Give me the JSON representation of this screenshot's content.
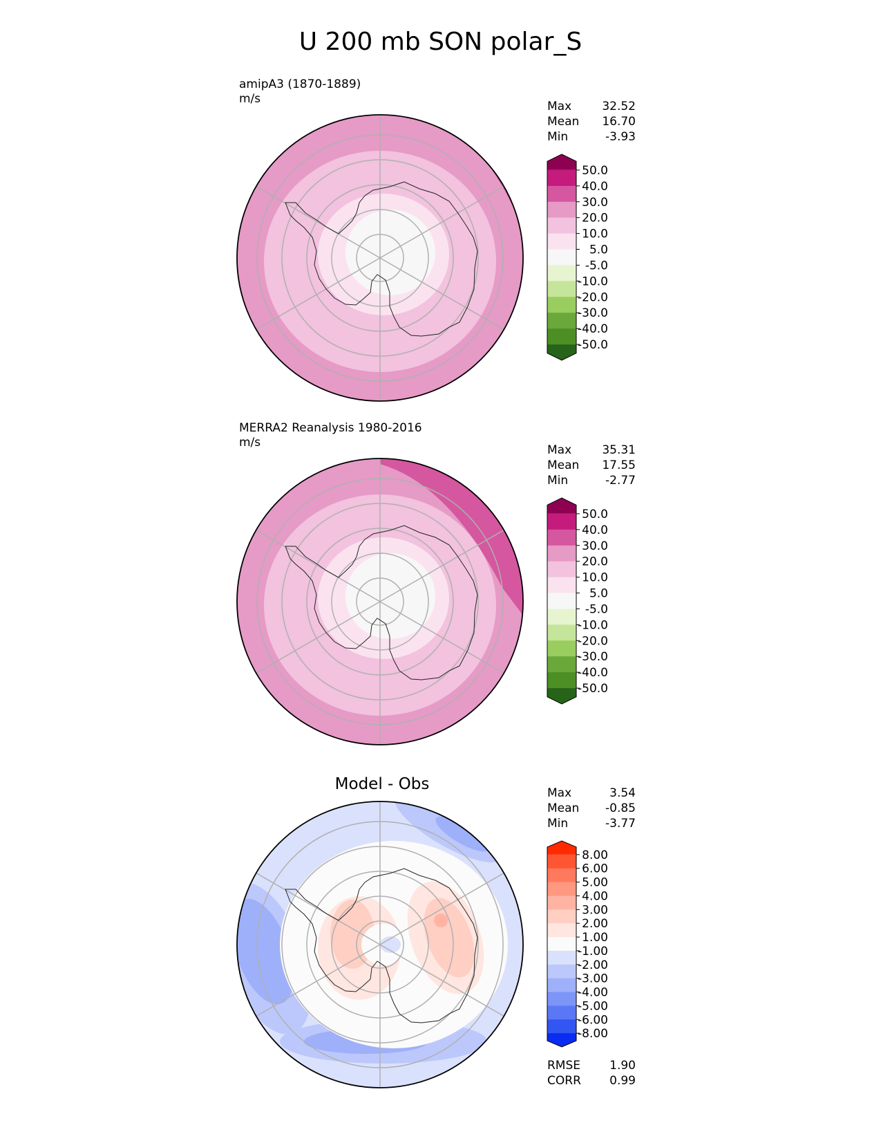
{
  "title": "U 200 mb SON polar_S",
  "colors": {
    "land_line": "#222222",
    "grid_line": "#b0b0b0",
    "frame": "#000000",
    "pink_bg": "#e69ac6",
    "pink_light": "#f2c2de",
    "pink_pale": "#fae3ef",
    "white_center": "#f7f7f7",
    "pink_strong": "#d5579f"
  },
  "panels": [
    {
      "id": "model",
      "title_line1": "amipA3 (1870-1889)",
      "title_line2": "m/s",
      "stats": {
        "max_label": "Max",
        "max": "32.52",
        "mean_label": "Mean",
        "mean": "16.70",
        "min_label": "Min",
        "min": "-3.93"
      }
    },
    {
      "id": "obs",
      "title_line1": "MERRA2 Reanalysis 1980-2016",
      "title_line2": "m/s",
      "stats": {
        "max_label": "Max",
        "max": "35.31",
        "mean_label": "Mean",
        "mean": "17.55",
        "min_label": "Min",
        "min": "-2.77"
      }
    },
    {
      "id": "diff",
      "title": "Model - Obs",
      "stats": {
        "max_label": "Max",
        "max": "3.54",
        "mean_label": "Mean",
        "mean": "-0.85",
        "min_label": "Min",
        "min": "-3.77"
      },
      "metrics": {
        "rmse_label": "RMSE",
        "rmse": "1.90",
        "corr_label": "CORR",
        "corr": "0.99"
      }
    }
  ],
  "chart_data": [
    {
      "type": "heatmap",
      "projection": "south-polar-stereographic",
      "title": "amipA3 (1870-1889)",
      "units": "m/s",
      "stats": {
        "max": 32.52,
        "mean": 16.7,
        "min": -3.93
      },
      "colorbar": {
        "levels": [
          "50.0",
          "40.0",
          "30.0",
          "20.0",
          "10.0",
          "5.0",
          "-5.0",
          "-10.0",
          "-20.0",
          "-30.0",
          "-40.0",
          "-50.0"
        ],
        "colors": [
          "#8e0152",
          "#c51b7d",
          "#d5579f",
          "#e69ac6",
          "#f2c2de",
          "#fae3ef",
          "#f7f7f7",
          "#e6f5d0",
          "#c5e59b",
          "#9acd5f",
          "#6aa83b",
          "#4d8f25",
          "#276419"
        ]
      }
    },
    {
      "type": "heatmap",
      "projection": "south-polar-stereographic",
      "title": "MERRA2 Reanalysis 1980-2016",
      "units": "m/s",
      "stats": {
        "max": 35.31,
        "mean": 17.55,
        "min": -2.77
      },
      "colorbar": {
        "levels": [
          "50.0",
          "40.0",
          "30.0",
          "20.0",
          "10.0",
          "5.0",
          "-5.0",
          "-10.0",
          "-20.0",
          "-30.0",
          "-40.0",
          "-50.0"
        ],
        "colors": [
          "#8e0152",
          "#c51b7d",
          "#d5579f",
          "#e69ac6",
          "#f2c2de",
          "#fae3ef",
          "#f7f7f7",
          "#e6f5d0",
          "#c5e59b",
          "#9acd5f",
          "#6aa83b",
          "#4d8f25",
          "#276419"
        ]
      }
    },
    {
      "type": "heatmap",
      "projection": "south-polar-stereographic",
      "title": "Model - Obs",
      "stats": {
        "max": 3.54,
        "mean": -0.85,
        "min": -3.77,
        "rmse": 1.9,
        "corr": 0.99
      },
      "colorbar": {
        "levels": [
          "8.00",
          "6.00",
          "5.00",
          "4.00",
          "3.00",
          "2.00",
          "1.00",
          "-1.00",
          "-2.00",
          "-3.00",
          "-4.00",
          "-5.00",
          "-6.00",
          "-8.00"
        ],
        "colors": [
          "#ff2a00",
          "#ff5533",
          "#ff7a5c",
          "#ff9880",
          "#ffb4a3",
          "#ffcfc4",
          "#ffe6e0",
          "#fbfbfb",
          "#dae1fc",
          "#bcc8fb",
          "#9eb0f9",
          "#7d95f7",
          "#5a77f5",
          "#3355f2",
          "#0a2cf0"
        ]
      }
    }
  ]
}
